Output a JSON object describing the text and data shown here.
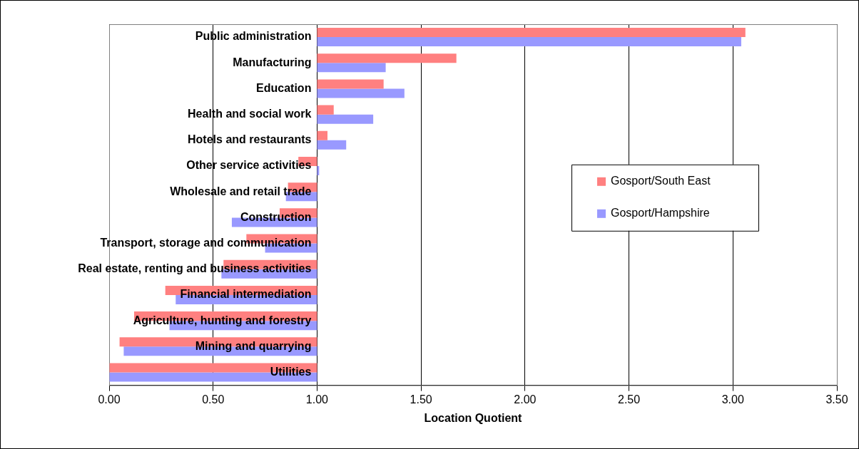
{
  "chart_data": {
    "type": "bar",
    "orientation": "horizontal",
    "xlabel": "Location Quotient",
    "categories": [
      "Public administration",
      "Manufacturing",
      "Education",
      "Health and social work",
      "Hotels and restaurants",
      "Other service activities",
      "Wholesale and retail trade",
      "Construction",
      "Transport, storage and communication",
      "Real estate, renting and business activities",
      "Financial intermediation",
      "Agriculture, hunting and forestry",
      "Mining and quarrying",
      "Utilities"
    ],
    "series": [
      {
        "name": "Gosport/South East",
        "color": "#ff8080",
        "base": [
          1,
          1,
          1,
          1,
          1,
          1,
          1,
          1,
          1,
          1,
          1,
          1,
          1,
          1
        ],
        "values": [
          2.06,
          0.67,
          0.32,
          0.08,
          0.05,
          -0.09,
          -0.14,
          -0.18,
          -0.34,
          -0.45,
          -0.73,
          -0.88,
          -0.95,
          -1.0
        ]
      },
      {
        "name": "Gosport/Hampshire",
        "color": "#9999ff",
        "base": [
          1,
          1,
          1,
          1,
          1,
          1,
          1,
          1,
          1,
          1,
          1,
          1,
          1,
          1
        ],
        "values": [
          2.04,
          0.33,
          0.42,
          0.27,
          0.14,
          0.01,
          -0.15,
          -0.41,
          -0.25,
          -0.46,
          -0.68,
          -0.71,
          -0.93,
          -1.0
        ]
      }
    ],
    "xlim": [
      0,
      3.5
    ],
    "xticks": [
      {
        "value": 0,
        "label": "0.00"
      },
      {
        "value": 0.5,
        "label": "0.50"
      },
      {
        "value": 1,
        "label": "1.00"
      },
      {
        "value": 1.5,
        "label": "1.50"
      },
      {
        "value": 2,
        "label": "2.00"
      },
      {
        "value": 2.5,
        "label": "2.50"
      },
      {
        "value": 3,
        "label": "3.00"
      },
      {
        "value": 3.5,
        "label": "3.50"
      }
    ],
    "grid": "x",
    "legend": "right"
  }
}
